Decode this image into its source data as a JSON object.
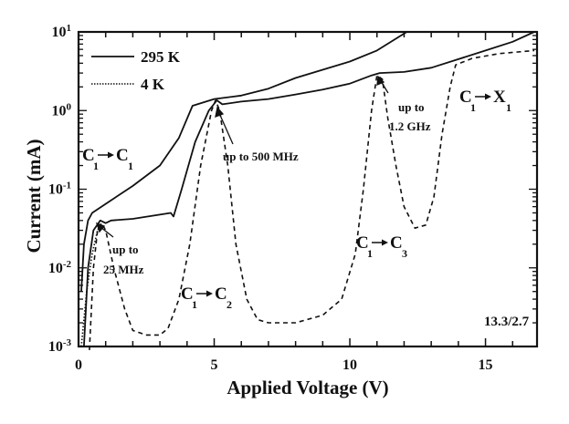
{
  "chart_data": {
    "type": "line",
    "title": "",
    "xlabel": "Applied Voltage (V)",
    "ylabel": "Current (mA)",
    "xlim": [
      0,
      16.9
    ],
    "ylim": [
      0.001,
      10
    ],
    "yscale": "log",
    "grid": false,
    "legend_placement": "top-left",
    "x_ticks": [
      "0",
      "5",
      "10",
      "15"
    ],
    "y_ticks": [
      {
        "base": "10",
        "exp": "1"
      },
      {
        "base": "10",
        "exp": "0"
      },
      {
        "base": "10",
        "exp": "-1"
      },
      {
        "base": "10",
        "exp": "-2"
      },
      {
        "base": "10",
        "exp": "-3"
      }
    ],
    "legend": [
      {
        "name": "295 K",
        "style": "solid"
      },
      {
        "name": "4 K",
        "style": "dotted"
      }
    ],
    "series": [
      {
        "name": "295 K",
        "style": "solid",
        "points": [
          [
            0.1,
            0.005
          ],
          [
            0.2,
            0.02
          ],
          [
            0.35,
            0.04
          ],
          [
            0.5,
            0.05
          ],
          [
            1,
            0.065
          ],
          [
            2,
            0.11
          ],
          [
            3,
            0.2
          ],
          [
            3.7,
            0.45
          ],
          [
            4.2,
            1.15
          ],
          [
            5,
            1.4
          ],
          [
            6,
            1.55
          ],
          [
            7,
            1.9
          ],
          [
            8,
            2.6
          ],
          [
            9,
            3.3
          ],
          [
            10,
            4.2
          ],
          [
            11,
            5.8
          ],
          [
            12.1,
            10
          ]
        ]
      },
      {
        "style": "solid",
        "points": [
          [
            0.2,
            0.001
          ],
          [
            0.35,
            0.01
          ],
          [
            0.55,
            0.03
          ],
          [
            0.8,
            0.04
          ],
          [
            1,
            0.037
          ],
          [
            1.2,
            0.04
          ],
          [
            2,
            0.042
          ],
          [
            3.4,
            0.05
          ],
          [
            3.5,
            0.045
          ],
          [
            3.8,
            0.1
          ],
          [
            4.3,
            0.4
          ],
          [
            4.8,
            1.0
          ],
          [
            5.1,
            1.35
          ],
          [
            5.3,
            1.2
          ],
          [
            6,
            1.3
          ],
          [
            7,
            1.4
          ],
          [
            8,
            1.6
          ],
          [
            9,
            1.85
          ],
          [
            10,
            2.2
          ],
          [
            10.8,
            2.8
          ],
          [
            11.1,
            3.0
          ],
          [
            12,
            3.1
          ],
          [
            13,
            3.5
          ],
          [
            14,
            4.5
          ],
          [
            15,
            5.8
          ],
          [
            16,
            7.5
          ],
          [
            16.8,
            10
          ]
        ]
      },
      {
        "name": "4 K",
        "style": "dotted",
        "points": [
          [
            0.1,
            0.001
          ],
          [
            0.3,
            0.005
          ],
          [
            0.5,
            0.015
          ],
          [
            0.7,
            0.03
          ],
          [
            0.8,
            0.035
          ]
        ]
      },
      {
        "style": "dashed",
        "points": [
          [
            0.4,
            0.0009
          ],
          [
            0.55,
            0.01
          ],
          [
            0.7,
            0.03
          ],
          [
            0.85,
            0.037
          ],
          [
            1.0,
            0.03
          ],
          [
            1.3,
            0.01
          ],
          [
            1.7,
            0.003
          ],
          [
            2,
            0.0016
          ],
          [
            2.5,
            0.0014
          ],
          [
            3,
            0.0014
          ],
          [
            3.3,
            0.0017
          ],
          [
            3.7,
            0.004
          ],
          [
            4.1,
            0.02
          ],
          [
            4.5,
            0.2
          ],
          [
            4.9,
            1.0
          ],
          [
            5.05,
            1.35
          ],
          [
            5.2,
            1.0
          ],
          [
            5.5,
            0.2
          ],
          [
            5.8,
            0.02
          ],
          [
            6.2,
            0.004
          ],
          [
            6.6,
            0.0022
          ],
          [
            7,
            0.002
          ],
          [
            8,
            0.002
          ],
          [
            9,
            0.0025
          ],
          [
            9.7,
            0.004
          ],
          [
            10.2,
            0.015
          ],
          [
            10.5,
            0.1
          ],
          [
            10.8,
            1.0
          ],
          [
            11,
            2.8
          ],
          [
            11.2,
            2.5
          ],
          [
            11.4,
            0.8
          ],
          [
            11.7,
            0.2
          ],
          [
            12,
            0.06
          ],
          [
            12.4,
            0.032
          ],
          [
            12.8,
            0.035
          ],
          [
            13.1,
            0.08
          ],
          [
            13.4,
            0.5
          ],
          [
            13.7,
            2.0
          ],
          [
            13.9,
            3.8
          ],
          [
            14.5,
            4.6
          ],
          [
            15.5,
            5.3
          ],
          [
            16.8,
            5.8
          ]
        ]
      }
    ],
    "annotations": {
      "c1_c1": {
        "a": "C",
        "a_sub": "1",
        "b": "C",
        "b_sub": "1"
      },
      "c1_c2": {
        "a": "C",
        "a_sub": "1",
        "b": "C",
        "b_sub": "2"
      },
      "c1_c3": {
        "a": "C",
        "a_sub": "1",
        "b": "C",
        "b_sub": "3"
      },
      "c1_x1": {
        "a": "C",
        "a_sub": "1",
        "b": "X",
        "b_sub": "1"
      },
      "up_25": [
        "up to",
        "25 MHz"
      ],
      "up_500": "up to 500 MHz",
      "up_12": [
        "up to",
        "1.2 GHz"
      ],
      "inset": "13.3/2.7"
    }
  }
}
